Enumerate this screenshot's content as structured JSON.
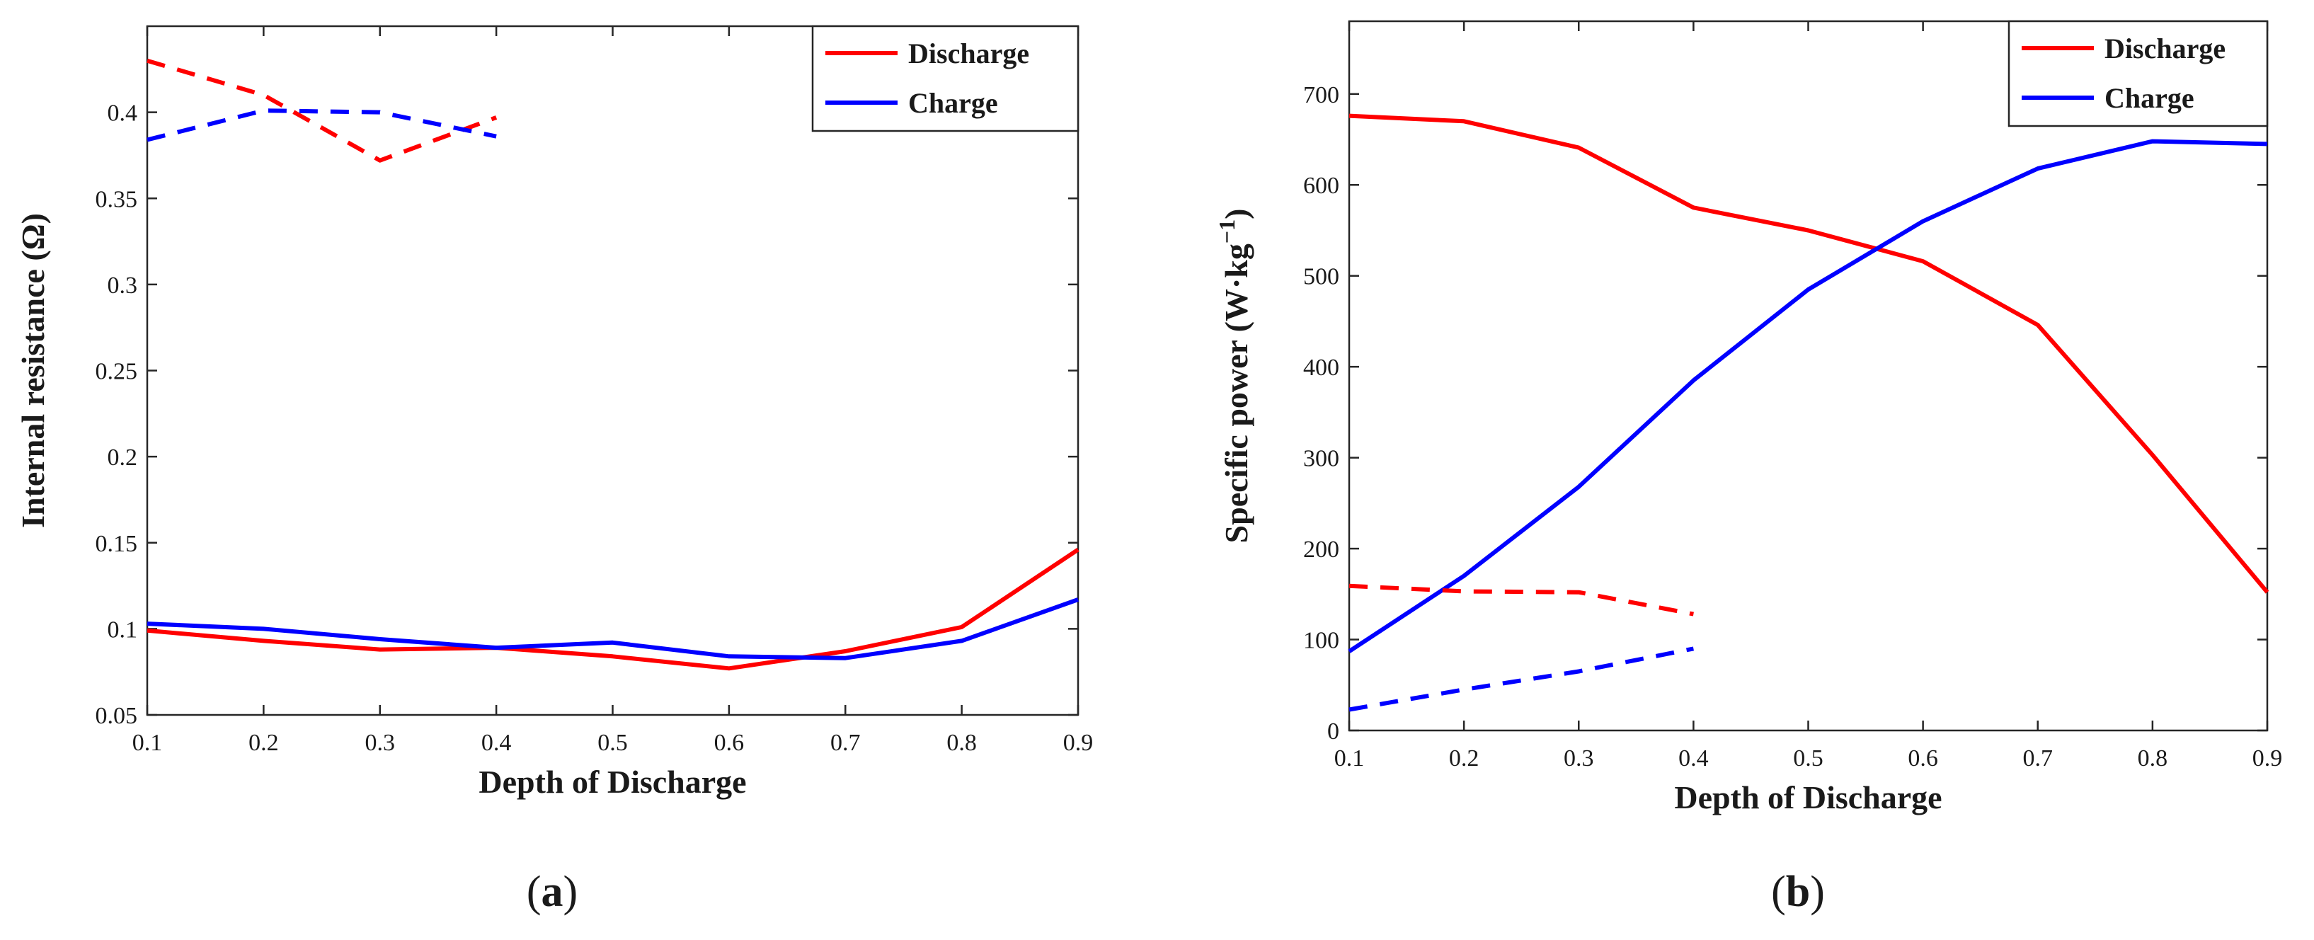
{
  "chart_data": [
    {
      "type": "line",
      "panel_label": {
        "open": "(",
        "letter": "a",
        "close": ")"
      },
      "xlabel": "Depth of Discharge",
      "ylabel": "Internal resistance (Ω)",
      "xlim": [
        0.1,
        0.9
      ],
      "ylim": [
        0.05,
        0.45
      ],
      "xticks": [
        0.1,
        0.2,
        0.3,
        0.4,
        0.5,
        0.6,
        0.7,
        0.8,
        0.9
      ],
      "xtick_labels": [
        "0.1",
        "0.2",
        "0.3",
        "0.4",
        "0.5",
        "0.6",
        "0.7",
        "0.8",
        "0.9"
      ],
      "yticks": [
        0.05,
        0.1,
        0.15,
        0.2,
        0.25,
        0.3,
        0.35,
        0.4
      ],
      "ytick_labels": [
        "0.05",
        "0.1",
        "0.15",
        "0.2",
        "0.25",
        "0.3",
        "0.35",
        "0.4"
      ],
      "legend": {
        "position": "top-right",
        "entries": [
          "Discharge",
          "Charge"
        ]
      },
      "series": [
        {
          "name": "Discharge",
          "style": "solid",
          "color": "#ff0000",
          "x": [
            0.1,
            0.2,
            0.3,
            0.4,
            0.5,
            0.6,
            0.7,
            0.8,
            0.9
          ],
          "y": [
            0.099,
            0.093,
            0.088,
            0.089,
            0.084,
            0.077,
            0.087,
            0.101,
            0.146
          ]
        },
        {
          "name": "Charge",
          "style": "solid",
          "color": "#0000ff",
          "x": [
            0.1,
            0.2,
            0.3,
            0.4,
            0.5,
            0.6,
            0.7,
            0.8,
            0.9
          ],
          "y": [
            0.103,
            0.1,
            0.094,
            0.089,
            0.092,
            0.084,
            0.083,
            0.093,
            0.117
          ]
        },
        {
          "name": "Discharge (dashed)",
          "style": "dashed",
          "color": "#ff0000",
          "x": [
            0.1,
            0.2,
            0.3,
            0.4
          ],
          "y": [
            0.43,
            0.41,
            0.372,
            0.397
          ]
        },
        {
          "name": "Charge (dashed)",
          "style": "dashed",
          "color": "#0000ff",
          "x": [
            0.1,
            0.2,
            0.3,
            0.4
          ],
          "y": [
            0.384,
            0.401,
            0.4,
            0.386
          ]
        }
      ]
    },
    {
      "type": "line",
      "panel_label": {
        "open": "(",
        "letter": "b",
        "close": ")"
      },
      "xlabel": "Depth of Discharge",
      "ylabel": "Specific power (W·kg",
      "ylabel_exponent": "−1",
      "ylabel_close": ")",
      "xlim": [
        0.1,
        0.9
      ],
      "ylim": [
        0,
        780
      ],
      "xticks": [
        0.1,
        0.2,
        0.3,
        0.4,
        0.5,
        0.6,
        0.7,
        0.8,
        0.9
      ],
      "xtick_labels": [
        "0.1",
        "0.2",
        "0.3",
        "0.4",
        "0.5",
        "0.6",
        "0.7",
        "0.8",
        "0.9"
      ],
      "yticks": [
        0,
        100,
        200,
        300,
        400,
        500,
        600,
        700
      ],
      "ytick_labels": [
        "0",
        "100",
        "200",
        "300",
        "400",
        "500",
        "600",
        "700"
      ],
      "legend": {
        "position": "top-right",
        "entries": [
          "Discharge",
          "Charge"
        ]
      },
      "series": [
        {
          "name": "Discharge",
          "style": "solid",
          "color": "#ff0000",
          "x": [
            0.1,
            0.2,
            0.3,
            0.4,
            0.5,
            0.6,
            0.7,
            0.8,
            0.9
          ],
          "y": [
            676,
            670,
            641,
            575,
            550,
            516,
            446,
            303,
            152
          ]
        },
        {
          "name": "Charge",
          "style": "solid",
          "color": "#0000ff",
          "x": [
            0.1,
            0.2,
            0.3,
            0.4,
            0.5,
            0.6,
            0.7,
            0.8,
            0.9
          ],
          "y": [
            87,
            170,
            268,
            385,
            485,
            560,
            618,
            648,
            645
          ]
        },
        {
          "name": "Discharge (dashed)",
          "style": "dashed",
          "color": "#ff0000",
          "x": [
            0.1,
            0.2,
            0.3,
            0.4
          ],
          "y": [
            159,
            153,
            152,
            128
          ]
        },
        {
          "name": "Charge (dashed)",
          "style": "dashed",
          "color": "#0000ff",
          "x": [
            0.1,
            0.2,
            0.3,
            0.4
          ],
          "y": [
            23,
            45,
            65,
            90
          ]
        }
      ]
    }
  ]
}
